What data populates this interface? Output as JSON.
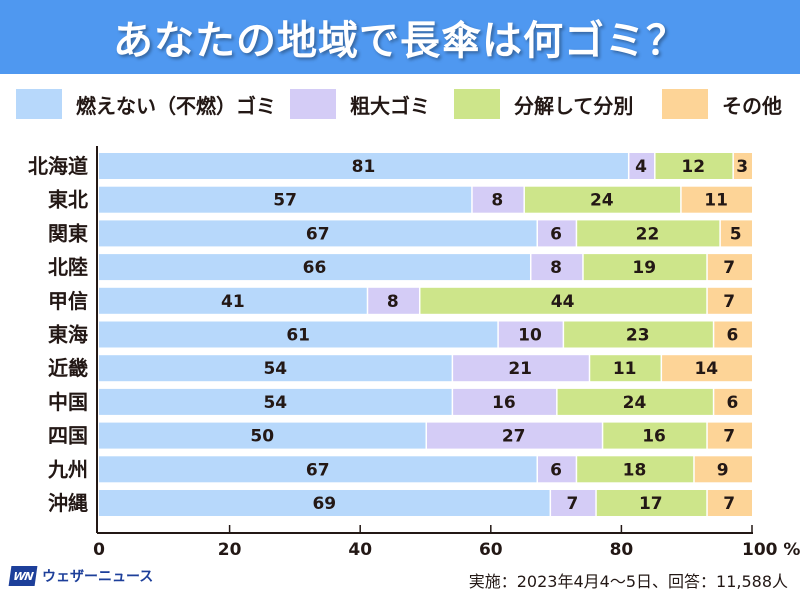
{
  "header": {
    "title": "あなたの地域で長傘は何ゴミ？"
  },
  "legend": [
    {
      "label": "燃えない（不燃）ゴミ",
      "color": "#b7d8fb"
    },
    {
      "label": "粗大ゴミ",
      "color": "#d4ccf6"
    },
    {
      "label": "分解して分別",
      "color": "#cde58a"
    },
    {
      "label": "その他",
      "color": "#fdd497"
    }
  ],
  "chart_data": {
    "type": "bar",
    "orientation": "horizontal",
    "stacked": true,
    "title": "あなたの地域で長傘は何ゴミ？",
    "xlabel": "",
    "ylabel": "",
    "xlim": [
      0,
      100
    ],
    "x_ticks": [
      "0",
      "20",
      "40",
      "60",
      "80",
      "100 %"
    ],
    "x_tick_values": [
      0,
      20,
      40,
      60,
      80,
      100
    ],
    "legend_position": "top",
    "categories": [
      "北海道",
      "東北",
      "関東",
      "北陸",
      "甲信",
      "東海",
      "近畿",
      "中国",
      "四国",
      "九州",
      "沖縄"
    ],
    "series": [
      {
        "name": "燃えない（不燃）ゴミ",
        "color": "#b7d8fb",
        "values": [
          81,
          57,
          67,
          66,
          41,
          61,
          54,
          54,
          50,
          67,
          69
        ]
      },
      {
        "name": "粗大ゴミ",
        "color": "#d4ccf6",
        "values": [
          4,
          8,
          6,
          8,
          8,
          10,
          21,
          16,
          27,
          6,
          7
        ]
      },
      {
        "name": "分解して分別",
        "color": "#cde58a",
        "values": [
          12,
          24,
          22,
          19,
          44,
          23,
          11,
          24,
          16,
          18,
          17
        ]
      },
      {
        "name": "その他",
        "color": "#fdd497",
        "values": [
          3,
          11,
          5,
          7,
          7,
          6,
          14,
          6,
          7,
          9,
          7
        ]
      }
    ]
  },
  "footer": {
    "brand_logo": "WN",
    "brand_name": "ウェザーニュース",
    "note": "実施：2023年4月4〜5日、回答：11,588人"
  }
}
